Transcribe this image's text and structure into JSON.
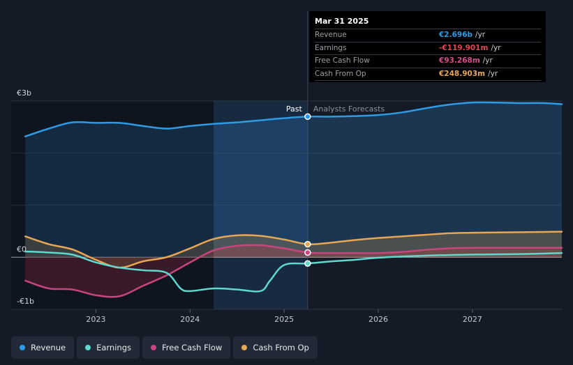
{
  "tooltip": {
    "date": "Mar 31 2025",
    "rows": [
      {
        "label": "Revenue",
        "value": "€2.696b",
        "unit": "/yr",
        "color": "#2f9be5"
      },
      {
        "label": "Earnings",
        "value": "-€119.901m",
        "unit": "/yr",
        "color": "#e5434e"
      },
      {
        "label": "Free Cash Flow",
        "value": "€93.268m",
        "unit": "/yr",
        "color": "#d3508c"
      },
      {
        "label": "Cash From Op",
        "value": "€248.903m",
        "unit": "/yr",
        "color": "#e8a755"
      }
    ]
  },
  "markers": {
    "past": "Past",
    "forecast": "Analysts Forecasts"
  },
  "legend": [
    {
      "label": "Revenue",
      "color": "#2f9be5"
    },
    {
      "label": "Earnings",
      "color": "#5fd9cf"
    },
    {
      "label": "Free Cash Flow",
      "color": "#c9457f"
    },
    {
      "label": "Cash From Op",
      "color": "#e8a755"
    }
  ],
  "chart_data": {
    "type": "line",
    "y_tick_labels": [
      "€3b",
      "€0",
      "-€1b"
    ],
    "x_tick_labels": [
      "2023",
      "2024",
      "2025",
      "2026",
      "2027"
    ],
    "ylim": [
      -1.0,
      3.0
    ],
    "xlim": [
      2022.1,
      2027.95
    ],
    "divider_x": 2025.25,
    "highlight_start_x": 2024.25,
    "series": [
      {
        "name": "Revenue",
        "color": "#2f9be5",
        "x": [
          2022.25,
          2022.5,
          2022.75,
          2023.0,
          2023.25,
          2023.5,
          2023.75,
          2024.0,
          2024.25,
          2024.5,
          2024.75,
          2025.0,
          2025.25,
          2025.5,
          2025.75,
          2026.0,
          2026.25,
          2026.5,
          2026.75,
          2027.0,
          2027.25,
          2027.5,
          2027.75,
          2027.95
        ],
        "y": [
          2.32,
          2.47,
          2.59,
          2.58,
          2.58,
          2.52,
          2.47,
          2.52,
          2.56,
          2.59,
          2.63,
          2.67,
          2.7,
          2.7,
          2.71,
          2.73,
          2.78,
          2.86,
          2.93,
          2.97,
          2.97,
          2.96,
          2.96,
          2.94
        ]
      },
      {
        "name": "Earnings",
        "color": "#5fd9cf",
        "x": [
          2022.25,
          2022.5,
          2022.75,
          2023.0,
          2023.25,
          2023.5,
          2023.75,
          2023.9,
          2024.0,
          2024.25,
          2024.5,
          2024.75,
          2024.85,
          2025.0,
          2025.25,
          2025.5,
          2025.75,
          2026.0,
          2026.5,
          2027.0,
          2027.5,
          2027.95
        ],
        "y": [
          0.11,
          0.09,
          0.05,
          -0.1,
          -0.2,
          -0.25,
          -0.3,
          -0.6,
          -0.65,
          -0.6,
          -0.62,
          -0.65,
          -0.45,
          -0.15,
          -0.12,
          -0.08,
          -0.05,
          -0.01,
          0.03,
          0.05,
          0.06,
          0.08
        ]
      },
      {
        "name": "Free Cash Flow",
        "color": "#c9457f",
        "x": [
          2022.25,
          2022.5,
          2022.75,
          2023.0,
          2023.25,
          2023.5,
          2023.75,
          2024.0,
          2024.25,
          2024.5,
          2024.75,
          2025.0,
          2025.25,
          2025.5,
          2025.75,
          2026.0,
          2026.25,
          2026.5,
          2026.75,
          2027.0,
          2027.5,
          2027.95
        ],
        "y": [
          -0.45,
          -0.6,
          -0.62,
          -0.73,
          -0.75,
          -0.55,
          -0.35,
          -0.1,
          0.13,
          0.22,
          0.23,
          0.17,
          0.09,
          0.08,
          0.08,
          0.08,
          0.1,
          0.14,
          0.17,
          0.18,
          0.18,
          0.18
        ]
      },
      {
        "name": "Cash From Op",
        "color": "#e8a755",
        "x": [
          2022.25,
          2022.5,
          2022.75,
          2023.0,
          2023.25,
          2023.5,
          2023.75,
          2024.0,
          2024.25,
          2024.5,
          2024.75,
          2025.0,
          2025.25,
          2025.5,
          2025.75,
          2026.0,
          2026.25,
          2026.5,
          2026.75,
          2027.0,
          2027.5,
          2027.95
        ],
        "y": [
          0.4,
          0.25,
          0.15,
          -0.05,
          -0.2,
          -0.08,
          0.0,
          0.17,
          0.35,
          0.42,
          0.41,
          0.34,
          0.25,
          0.28,
          0.33,
          0.37,
          0.4,
          0.43,
          0.46,
          0.47,
          0.48,
          0.49
        ]
      }
    ]
  }
}
